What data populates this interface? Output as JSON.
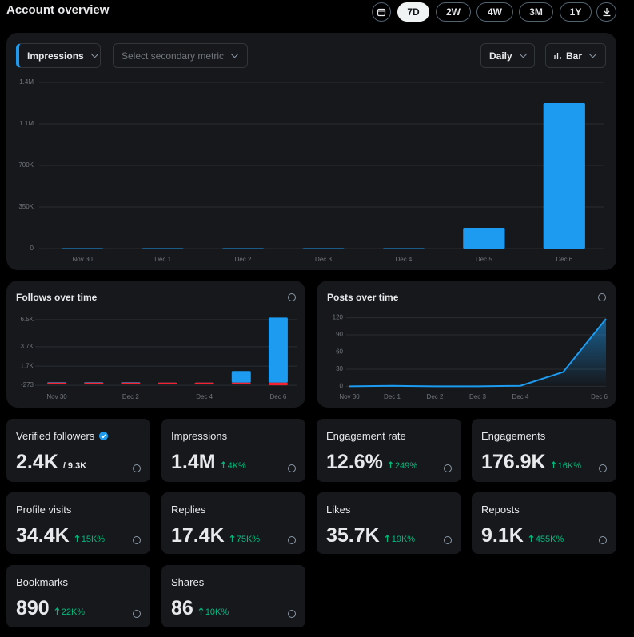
{
  "header": {
    "title": "Account overview",
    "ranges": [
      "7D",
      "2W",
      "4W",
      "3M",
      "1Y"
    ],
    "active_range": "7D"
  },
  "controls": {
    "primary_metric": "Impressions",
    "secondary_metric": "Select secondary metric",
    "interval": "Daily",
    "chart_style": "Bar"
  },
  "chart_data": [
    {
      "type": "bar",
      "categories": [
        "Nov 30",
        "Dec 1",
        "Dec 2",
        "Dec 3",
        "Dec 4",
        "Dec 5",
        "Dec 6"
      ],
      "values": [
        3000,
        3000,
        3000,
        3000,
        3000,
        175000,
        1225000
      ],
      "color": "#1d9bf0",
      "ylim": [
        0,
        1400000
      ],
      "yticks": [
        0,
        {
          "value": 350000,
          "label": "350K"
        },
        {
          "value": 700000,
          "label": "700K"
        },
        {
          "value": 1050000,
          "label": "1.1M"
        },
        {
          "value": 1400000,
          "label": "1.4M"
        }
      ],
      "grid": true
    },
    {
      "type": "bar",
      "title": "Follows over time",
      "categories": [
        "Nov 30",
        null,
        "Dec 2",
        null,
        "Dec 4",
        null,
        "Dec 6"
      ],
      "series": [
        {
          "color": "#1d9bf0",
          "values": [
            50,
            50,
            50,
            0,
            0,
            1200,
            6700
          ]
        },
        {
          "color": "#f4212e",
          "values": [
            -50,
            -50,
            -50,
            -50,
            -50,
            -50,
            -273
          ]
        }
      ],
      "ylim": [
        -500,
        6800
      ],
      "yticks": [
        -273,
        {
          "value": 1700,
          "label": "1.7K"
        },
        {
          "value": 3700,
          "label": "3.7K"
        },
        {
          "value": 6500,
          "label": "6.5K"
        }
      ],
      "grid": true
    },
    {
      "type": "line",
      "title": "Posts over time",
      "categories": [
        "Nov 30",
        "Dec 1",
        "Dec 2",
        "Dec 3",
        "Dec 4",
        null,
        "Dec 6"
      ],
      "values": [
        0,
        1,
        0,
        0,
        1,
        25,
        118
      ],
      "color": "#1d9bf0",
      "ylim": [
        -5,
        125
      ],
      "yticks": [
        0,
        30,
        60,
        90,
        120
      ],
      "grid": true
    }
  ],
  "cards": [
    {
      "label": "Verified followers",
      "value": "2.4K",
      "total": "/ 9.3K",
      "verified": true
    },
    {
      "label": "Impressions",
      "value": "1.4M",
      "change": "4K%"
    },
    {
      "label": "Engagement rate",
      "value": "12.6%",
      "change": "249%"
    },
    {
      "label": "Engagements",
      "value": "176.9K",
      "change": "16K%"
    },
    {
      "label": "Profile visits",
      "value": "34.4K",
      "change": "15K%"
    },
    {
      "label": "Replies",
      "value": "17.4K",
      "change": "75K%"
    },
    {
      "label": "Likes",
      "value": "35.7K",
      "change": "19K%"
    },
    {
      "label": "Reposts",
      "value": "9.1K",
      "change": "455K%"
    },
    {
      "label": "Bookmarks",
      "value": "890",
      "change": "22K%"
    },
    {
      "label": "Shares",
      "value": "86",
      "change": "10K%"
    }
  ]
}
